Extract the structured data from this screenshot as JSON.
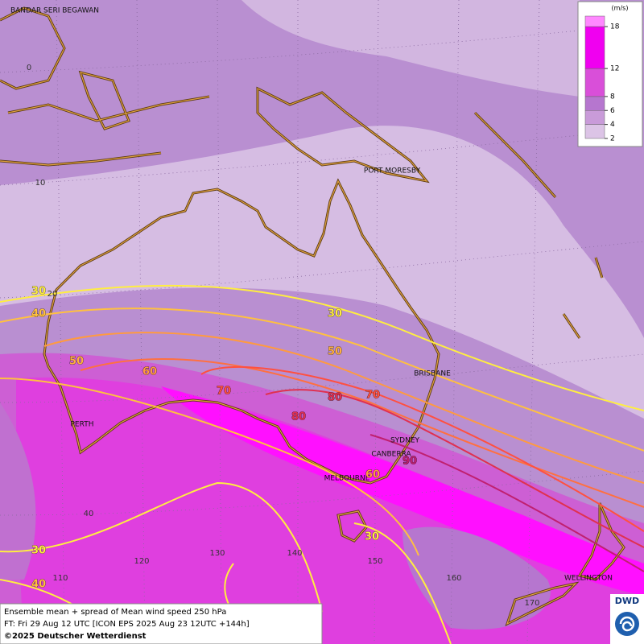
{
  "map": {
    "places": [
      "BANDAR SERI BEGAWAN",
      "PORT MORESBY",
      "BRISBANE",
      "SYDNEY",
      "CANBERRA",
      "MELBOURNE",
      "PERTH",
      "WELLINGTON"
    ],
    "latitudes": [
      0,
      10,
      20,
      40
    ],
    "longitudes": [
      110,
      120,
      130,
      140,
      150,
      160,
      170
    ],
    "contour_labels": [
      30,
      40,
      50,
      60,
      70,
      30,
      50,
      80,
      70,
      80,
      90,
      60,
      30,
      30,
      40
    ]
  },
  "legend": {
    "unit": "(m/s)",
    "ticks": [
      2,
      4,
      6,
      8,
      12,
      18
    ],
    "colors": [
      "#dcc4e6",
      "#c99bd9",
      "#b676cf",
      "#d94fd9",
      "#f000f0",
      "#ff88ff"
    ]
  },
  "footer": {
    "line1": "Ensemble mean + spread of Mean wind speed 250 hPa",
    "line2": "FT: Fri 29 Aug 12 UTC [ICON EPS 2025 Aug 23 12UTC +144h]",
    "line3": "©2025 Deutscher Wetterdienst",
    "logo": "DWD"
  }
}
